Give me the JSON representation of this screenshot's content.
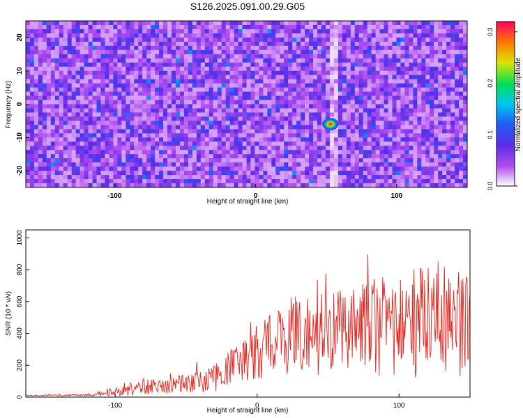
{
  "title": "S126.2025.091.00.29.G05",
  "chart_data": [
    {
      "type": "heatmap",
      "xlabel": "Height of straight line (km)",
      "ylabel": "Frequency (Hz)",
      "xlim": [
        -163,
        150
      ],
      "ylim": [
        -25,
        25
      ],
      "xticks": [
        "-100",
        "0",
        "100"
      ],
      "yticks": [
        "20",
        "10",
        "0",
        "-10",
        "-20"
      ],
      "colorbar": {
        "label": "Normalized spectral amplitude",
        "range": [
          0,
          0.32
        ],
        "ticks": [
          "0.0",
          "0.1",
          "0.2",
          "0.3"
        ]
      },
      "peak": {
        "x": 53,
        "y": -6,
        "value": 0.3
      },
      "background_level": [
        0.02,
        0.08
      ],
      "grid": false
    },
    {
      "type": "line",
      "xlabel": "Height of straight line (km)",
      "ylabel": "SNR (10 * v/v)",
      "xlim": [
        -163,
        150
      ],
      "ylim": [
        0,
        1050
      ],
      "xticks": [
        "-100",
        "0",
        "100"
      ],
      "yticks": [
        "0",
        "200",
        "400",
        "600",
        "800",
        "1000"
      ],
      "color": "#e8221b",
      "x_step": 0.5,
      "envelope": {
        "x": [
          -163,
          -120,
          -105,
          -90,
          -80,
          -60,
          -40,
          -25,
          -15,
          -5,
          5,
          15,
          25,
          40,
          60,
          80,
          100,
          120,
          140,
          150
        ],
        "baseline": [
          10,
          12,
          28,
          45,
          65,
          75,
          90,
          130,
          210,
          260,
          300,
          360,
          390,
          410,
          420,
          440,
          450,
          470,
          460,
          450
        ],
        "spread": [
          6,
          8,
          30,
          55,
          75,
          80,
          100,
          150,
          210,
          230,
          260,
          300,
          360,
          400,
          420,
          440,
          470,
          520,
          500,
          470
        ]
      },
      "grid": false
    }
  ]
}
